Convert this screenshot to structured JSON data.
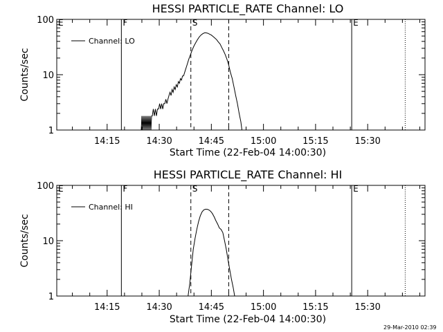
{
  "chart_data": [
    {
      "type": "line",
      "title": "HESSI PARTICLE_RATE Channel: LO",
      "xlabel": "Start Time (22-Feb-04 14:00:30)",
      "ylabel": "Counts/sec",
      "y_scale": "log",
      "ylim": [
        1,
        100
      ],
      "xlim": [
        0,
        106
      ],
      "x_units": "minutes after 14:00:30",
      "y_ticks": [
        {
          "value": 1,
          "label": "1"
        },
        {
          "value": 10,
          "label": "10"
        },
        {
          "value": 100,
          "label": "100"
        }
      ],
      "x_ticks": [
        {
          "value": 14.5,
          "label": "14:15"
        },
        {
          "value": 29.5,
          "label": "14:30"
        },
        {
          "value": 44.5,
          "label": "14:45"
        },
        {
          "value": 59.5,
          "label": "15:00"
        },
        {
          "value": 74.5,
          "label": "15:15"
        },
        {
          "value": 89.5,
          "label": "15:30"
        }
      ],
      "legend": {
        "label": "Channel: LO",
        "position": "top-left"
      },
      "markers": [
        {
          "label": "E",
          "x": 0,
          "style": "none"
        },
        {
          "label": "F",
          "x": 18.6,
          "style": "solid"
        },
        {
          "label": "S",
          "x": 38.6,
          "style": "dashed"
        },
        {
          "label": "",
          "x": 49.5,
          "style": "dashed"
        },
        {
          "label": "E",
          "x": 84.9,
          "style": "solid"
        },
        {
          "label": "",
          "x": 100.3,
          "style": "dotted"
        }
      ],
      "series": [
        {
          "values": [
            [
              24.3,
              1
            ],
            [
              24.5,
              1.8
            ],
            [
              24.7,
              1
            ],
            [
              24.9,
              1.8
            ],
            [
              25.1,
              1
            ],
            [
              25.3,
              1.8
            ],
            [
              25.5,
              1
            ],
            [
              25.7,
              1.8
            ],
            [
              25.9,
              1
            ],
            [
              26.1,
              1.8
            ],
            [
              26.3,
              1
            ],
            [
              26.5,
              1.8
            ],
            [
              26.7,
              1
            ],
            [
              26.9,
              1.8
            ],
            [
              27.1,
              1
            ],
            [
              27.3,
              1.8
            ],
            [
              27.5,
              1.8
            ],
            [
              27.8,
              2.4
            ],
            [
              28.1,
              1.8
            ],
            [
              28.4,
              2.4
            ],
            [
              28.7,
              1.8
            ],
            [
              29.0,
              2.4
            ],
            [
              29.3,
              2.4
            ],
            [
              29.6,
              3.0
            ],
            [
              29.9,
              2.4
            ],
            [
              30.2,
              3.0
            ],
            [
              30.5,
              2.4
            ],
            [
              30.8,
              3.0
            ],
            [
              31.1,
              3.0
            ],
            [
              31.4,
              3.6
            ],
            [
              31.7,
              3.0
            ],
            [
              32.0,
              3.6
            ],
            [
              32.3,
              4.2
            ],
            [
              32.6,
              4.8
            ],
            [
              32.9,
              4.2
            ],
            [
              33.2,
              5.4
            ],
            [
              33.5,
              4.8
            ],
            [
              33.8,
              6.0
            ],
            [
              34.1,
              5.4
            ],
            [
              34.4,
              6.6
            ],
            [
              34.7,
              6.0
            ],
            [
              35.0,
              7.5
            ],
            [
              35.3,
              7.0
            ],
            [
              35.6,
              8.5
            ],
            [
              35.9,
              8.0
            ],
            [
              36.2,
              9.5
            ],
            [
              36.5,
              9.5
            ],
            [
              37.0,
              12
            ],
            [
              37.5,
              15
            ],
            [
              38.0,
              19
            ],
            [
              38.5,
              23
            ],
            [
              39.0,
              28
            ],
            [
              39.5,
              33
            ],
            [
              40.0,
              38
            ],
            [
              40.5,
              43
            ],
            [
              41.0,
              48
            ],
            [
              41.5,
              52
            ],
            [
              42.0,
              55
            ],
            [
              42.5,
              57
            ],
            [
              43.0,
              57
            ],
            [
              43.5,
              56
            ],
            [
              44.0,
              54
            ],
            [
              44.5,
              52
            ],
            [
              45.0,
              49
            ],
            [
              45.5,
              46
            ],
            [
              46.0,
              43
            ],
            [
              46.5,
              39
            ],
            [
              47.0,
              36
            ],
            [
              47.5,
              31
            ],
            [
              48.0,
              27
            ],
            [
              48.5,
              23
            ],
            [
              49.0,
              19
            ],
            [
              49.5,
              15
            ],
            [
              50.0,
              11
            ],
            [
              50.5,
              8.5
            ],
            [
              51.0,
              6.0
            ],
            [
              51.5,
              4.2
            ],
            [
              52.0,
              3.0
            ],
            [
              52.5,
              2.0
            ],
            [
              53.0,
              1.4
            ],
            [
              53.3,
              1
            ]
          ]
        }
      ]
    },
    {
      "type": "line",
      "title": "HESSI PARTICLE_RATE Channel: HI",
      "xlabel": "Start Time (22-Feb-04 14:00:30)",
      "ylabel": "Counts/sec",
      "y_scale": "log",
      "ylim": [
        1,
        100
      ],
      "xlim": [
        0,
        106
      ],
      "x_units": "minutes after 14:00:30",
      "y_ticks": [
        {
          "value": 1,
          "label": "1"
        },
        {
          "value": 10,
          "label": "10"
        },
        {
          "value": 100,
          "label": "100"
        }
      ],
      "x_ticks": [
        {
          "value": 14.5,
          "label": "14:15"
        },
        {
          "value": 29.5,
          "label": "14:30"
        },
        {
          "value": 44.5,
          "label": "14:45"
        },
        {
          "value": 59.5,
          "label": "15:00"
        },
        {
          "value": 74.5,
          "label": "15:15"
        },
        {
          "value": 89.5,
          "label": "15:30"
        }
      ],
      "legend": {
        "label": "Channel: HI",
        "position": "top-left"
      },
      "markers": [
        {
          "label": "E",
          "x": 0,
          "style": "none"
        },
        {
          "label": "F",
          "x": 18.6,
          "style": "solid"
        },
        {
          "label": "S",
          "x": 38.6,
          "style": "dashed"
        },
        {
          "label": "",
          "x": 49.5,
          "style": "dashed"
        },
        {
          "label": "E",
          "x": 84.9,
          "style": "solid"
        },
        {
          "label": "",
          "x": 100.3,
          "style": "dotted"
        }
      ],
      "series": [
        {
          "values": [
            [
              37.8,
              1
            ],
            [
              38.3,
              1.7
            ],
            [
              38.8,
              3.5
            ],
            [
              39.3,
              7.0
            ],
            [
              39.8,
              11
            ],
            [
              40.3,
              16
            ],
            [
              40.8,
              22
            ],
            [
              41.3,
              28
            ],
            [
              41.8,
              33
            ],
            [
              42.3,
              36
            ],
            [
              42.8,
              37
            ],
            [
              43.3,
              37
            ],
            [
              43.8,
              36
            ],
            [
              44.3,
              34
            ],
            [
              44.8,
              31
            ],
            [
              45.3,
              27
            ],
            [
              45.8,
              23
            ],
            [
              46.3,
              20
            ],
            [
              46.8,
              17
            ],
            [
              47.3,
              16
            ],
            [
              47.8,
              14
            ],
            [
              48.3,
              10
            ],
            [
              48.8,
              7.0
            ],
            [
              49.3,
              4.5
            ],
            [
              49.8,
              3.0
            ],
            [
              50.3,
              2.0
            ],
            [
              50.8,
              1.4
            ],
            [
              51.2,
              1
            ]
          ]
        }
      ]
    }
  ],
  "footer": {
    "timestamp": "29-Mar-2010 02:39"
  }
}
